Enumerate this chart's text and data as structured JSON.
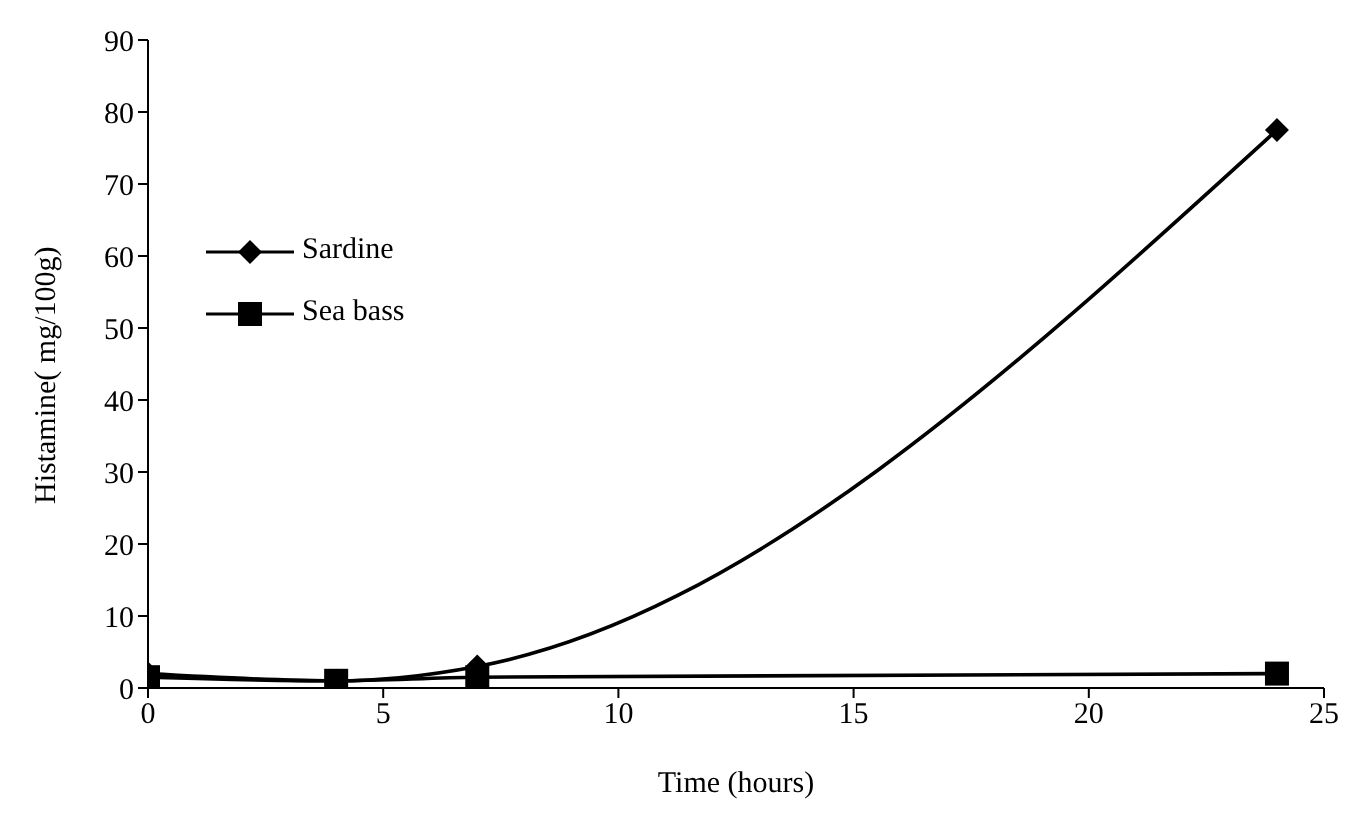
{
  "chart_data": {
    "type": "line",
    "xlabel": "Time (hours)",
    "ylabel": "Histamine( mg/100g)",
    "x": [
      0,
      4,
      7,
      24
    ],
    "series": [
      {
        "name": "Sardine",
        "color": "#000000",
        "marker": "diamond",
        "values": [
          2,
          1,
          3,
          77.5
        ]
      },
      {
        "name": "Sea bass",
        "color": "#000000",
        "marker": "square",
        "values": [
          1.5,
          1,
          1.5,
          2
        ]
      }
    ],
    "xlim": [
      0,
      25
    ],
    "xticks": [
      0,
      5,
      10,
      15,
      20,
      25
    ],
    "ylim": [
      0,
      90
    ],
    "yticks": [
      0,
      10,
      20,
      30,
      40,
      50,
      60,
      70,
      80,
      90
    ],
    "grid": false,
    "legend": "top left",
    "line_style": "solid"
  }
}
